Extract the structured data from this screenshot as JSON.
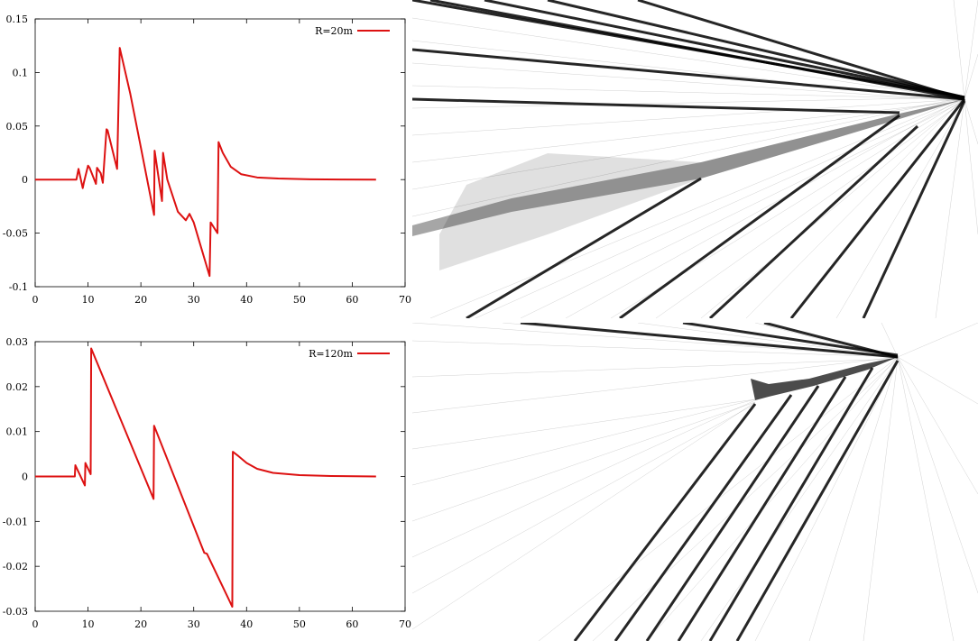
{
  "colors": {
    "series": "#dd1111",
    "axis": "#000000",
    "mesh_line": "#000000",
    "background": "#ffffff"
  },
  "chart_data": [
    {
      "type": "line",
      "title": "",
      "xlabel": "",
      "ylabel": "",
      "xlim": [
        0,
        70
      ],
      "ylim": [
        -0.1,
        0.15
      ],
      "x_ticks": [
        0,
        10,
        20,
        30,
        40,
        50,
        60,
        70
      ],
      "x_tick_labels": [
        "0",
        "10",
        "20",
        "30",
        "40",
        "50",
        "60",
        "70"
      ],
      "y_ticks": [
        -0.1,
        -0.05,
        0,
        0.05,
        0.1,
        0.15
      ],
      "y_tick_labels": [
        "-0.1",
        "-0.05",
        "0",
        "0.05",
        "0.1",
        "0.15"
      ],
      "grid": false,
      "legend_position": "top-right",
      "series": [
        {
          "name": "R=20m",
          "x": [
            0,
            7.8,
            8.2,
            9.0,
            9.2,
            10.0,
            10.3,
            11.5,
            11.7,
            12.4,
            12.8,
            13.5,
            13.7,
            15.5,
            16.0,
            18.0,
            20.0,
            22.5,
            22.6,
            24.0,
            24.2,
            25.0,
            27.0,
            28.5,
            29.2,
            30.0,
            31.5,
            33.0,
            33.2,
            34.5,
            34.7,
            35.5,
            37.0,
            39.0,
            42.0,
            46.0,
            52.0,
            58.0,
            64.5
          ],
          "y": [
            0,
            0,
            0.01,
            -0.008,
            -0.003,
            0.013,
            0.011,
            -0.004,
            0.011,
            0.006,
            -0.003,
            0.047,
            0.046,
            0.01,
            0.123,
            0.08,
            0.03,
            -0.033,
            0.027,
            -0.02,
            0.025,
            0.0,
            -0.03,
            -0.038,
            -0.032,
            -0.04,
            -0.065,
            -0.09,
            -0.04,
            -0.05,
            0.035,
            0.025,
            0.012,
            0.005,
            0.002,
            0.001,
            0.0003,
            0.0001,
            0
          ]
        }
      ]
    },
    {
      "type": "line",
      "title": "",
      "xlabel": "",
      "ylabel": "",
      "xlim": [
        0,
        70
      ],
      "ylim": [
        -0.03,
        0.03
      ],
      "x_ticks": [
        0,
        10,
        20,
        30,
        40,
        50,
        60,
        70
      ],
      "x_tick_labels": [
        "0",
        "10",
        "20",
        "30",
        "40",
        "50",
        "60",
        "70"
      ],
      "y_ticks": [
        -0.03,
        -0.02,
        -0.01,
        0,
        0.01,
        0.02,
        0.03
      ],
      "y_tick_labels": [
        "-0.03",
        "-0.02",
        "-0.01",
        "0",
        "0.01",
        "0.02",
        "0.03"
      ],
      "grid": false,
      "legend_position": "top-right",
      "series": [
        {
          "name": "R=120m",
          "x": [
            0,
            7.5,
            7.6,
            9.4,
            9.5,
            10.5,
            10.6,
            22.4,
            22.5,
            32.0,
            32.5,
            37.3,
            37.4,
            38.5,
            40.0,
            42.0,
            45.0,
            50.0,
            56.0,
            64.5
          ],
          "y": [
            0,
            0,
            0.0025,
            -0.002,
            0.003,
            0.0005,
            0.0285,
            -0.005,
            0.0113,
            -0.017,
            -0.0172,
            -0.029,
            0.0055,
            0.0045,
            0.003,
            0.0017,
            0.0008,
            0.0003,
            0.0001,
            0
          ]
        }
      ]
    }
  ]
}
